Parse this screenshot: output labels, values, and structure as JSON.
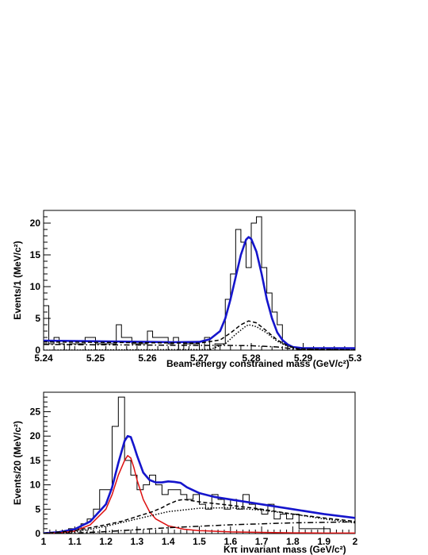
{
  "chart_data": [
    {
      "type": "line",
      "xlabel": "Beam-energy constrained mass (GeV/c²)",
      "ylabel": "Events/1 (MeV/c²)",
      "xlim": [
        5.24,
        5.3
      ],
      "ylim": [
        0,
        22
      ],
      "x_ticks": [
        "5.24",
        "5.25",
        "5.26",
        "5.27",
        "5.28",
        "5.29",
        "5.3"
      ],
      "y_ticks": [
        "0",
        "5",
        "10",
        "15",
        "20"
      ],
      "colors": {
        "data": "#000000",
        "total_fit": "#1515cc",
        "components": "#000000"
      },
      "series": [
        {
          "kind": "histogram",
          "bin_edges_start": 5.24,
          "bin_width": 0.001,
          "values": [
            7,
            1,
            2,
            1,
            0,
            1,
            1,
            1,
            2,
            2,
            1,
            1,
            1,
            1,
            4,
            2,
            2,
            1,
            1,
            1,
            3,
            2,
            2,
            2,
            1,
            2,
            0,
            1,
            1,
            1,
            0,
            2,
            0,
            1,
            1,
            8,
            12,
            19,
            17,
            13,
            20,
            21,
            13,
            9,
            6,
            4,
            1,
            0,
            0,
            0,
            0,
            0,
            0,
            0,
            0,
            0,
            0,
            0,
            0,
            0
          ]
        },
        {
          "kind": "line",
          "style": "solid",
          "x": [
            5.24,
            5.25,
            5.26,
            5.265,
            5.27,
            5.272,
            5.274,
            5.275,
            5.276,
            5.277,
            5.278,
            5.279,
            5.2795,
            5.28,
            5.281,
            5.282,
            5.283,
            5.284,
            5.285,
            5.286,
            5.287,
            5.288,
            5.29,
            5.3
          ],
          "y": [
            1.5,
            1.4,
            1.3,
            1.25,
            1.3,
            1.7,
            3.0,
            5.0,
            8.0,
            11.5,
            15.0,
            17.4,
            17.8,
            17.5,
            15.5,
            12.0,
            8.0,
            5.0,
            2.8,
            1.6,
            0.9,
            0.5,
            0.3,
            0.3
          ]
        },
        {
          "kind": "line",
          "style": "dashed",
          "x": [
            5.24,
            5.27,
            5.274,
            5.276,
            5.278,
            5.2795,
            5.281,
            5.283,
            5.285,
            5.287,
            5.289,
            5.3
          ],
          "y": [
            1.3,
            1.1,
            1.6,
            2.7,
            4.0,
            4.6,
            4.3,
            3.0,
            1.6,
            0.7,
            0.2,
            0.05
          ]
        },
        {
          "kind": "line",
          "style": "dotted",
          "x": [
            5.24,
            5.272,
            5.275,
            5.277,
            5.279,
            5.2795,
            5.281,
            5.283,
            5.285,
            5.287,
            5.289,
            5.3
          ],
          "y": [
            0,
            0.1,
            1.0,
            2.5,
            3.8,
            4.0,
            3.7,
            2.7,
            1.4,
            0.6,
            0.2,
            0.05
          ]
        },
        {
          "kind": "line",
          "style": "dashdot",
          "x": [
            5.24,
            5.25,
            5.26,
            5.27,
            5.275,
            5.28,
            5.285,
            5.288,
            5.29,
            5.3
          ],
          "y": [
            0.9,
            0.85,
            0.8,
            0.75,
            0.75,
            0.7,
            0.5,
            0.2,
            0.05,
            0.0
          ]
        }
      ]
    },
    {
      "type": "line",
      "xlabel": "Kπ invariant mass (GeV/c²)",
      "ylabel": "Events/20 (MeV/c²)",
      "xlim": [
        1.0,
        2.0
      ],
      "ylim": [
        0,
        29
      ],
      "x_ticks": [
        "1",
        "1.1",
        "1.2",
        "1.3",
        "1.4",
        "1.5",
        "1.6",
        "1.7",
        "1.8",
        "1.9",
        "2"
      ],
      "y_ticks": [
        "0",
        "5",
        "10",
        "15",
        "20",
        "25"
      ],
      "colors": {
        "data": "#000000",
        "total_fit": "#1515cc",
        "resonance": "#dd1010",
        "components": "#000000"
      },
      "series": [
        {
          "kind": "histogram",
          "bin_edges_start": 1.0,
          "bin_width": 0.02,
          "values": [
            0,
            0,
            0,
            0,
            1,
            1,
            2,
            3,
            5,
            9,
            9,
            22,
            28,
            15,
            12,
            9,
            10,
            12,
            10,
            8,
            9,
            9,
            8,
            7,
            8,
            6,
            5,
            8,
            7,
            5,
            7,
            5,
            8,
            6,
            5,
            4,
            6,
            3,
            4,
            3,
            4,
            1,
            1,
            1,
            1,
            1,
            0,
            0,
            0,
            0
          ]
        },
        {
          "kind": "line",
          "style": "solid",
          "color_key": "total_fit",
          "x": [
            1.0,
            1.05,
            1.1,
            1.15,
            1.2,
            1.22,
            1.24,
            1.26,
            1.27,
            1.28,
            1.29,
            1.3,
            1.32,
            1.34,
            1.36,
            1.38,
            1.4,
            1.42,
            1.44,
            1.46,
            1.5,
            1.55,
            1.6,
            1.7,
            1.8,
            1.9,
            2.0
          ],
          "y": [
            0.05,
            0.3,
            0.9,
            2.5,
            6.0,
            9.5,
            14.5,
            19.0,
            20.0,
            19.8,
            18.0,
            16.0,
            12.5,
            11.0,
            10.5,
            10.5,
            10.7,
            10.6,
            10.4,
            9.5,
            8.3,
            7.5,
            7.0,
            6.0,
            5.0,
            4.0,
            3.2
          ]
        },
        {
          "kind": "line",
          "style": "solid",
          "color_key": "resonance",
          "x": [
            1.0,
            1.05,
            1.1,
            1.15,
            1.2,
            1.22,
            1.24,
            1.26,
            1.27,
            1.28,
            1.29,
            1.3,
            1.32,
            1.34,
            1.36,
            1.4,
            1.45,
            1.5,
            1.6,
            1.7,
            1.8,
            1.9,
            2.0
          ],
          "y": [
            0.02,
            0.15,
            0.5,
            1.8,
            5.0,
            8.0,
            12.0,
            15.0,
            16.0,
            15.5,
            13.5,
            11.0,
            7.0,
            4.5,
            3.0,
            1.6,
            0.9,
            0.6,
            0.35,
            0.25,
            0.15,
            0.1,
            0.1
          ]
        },
        {
          "kind": "line",
          "style": "dashed",
          "x": [
            1.0,
            1.1,
            1.15,
            1.2,
            1.25,
            1.3,
            1.35,
            1.38,
            1.4,
            1.43,
            1.45,
            1.5,
            1.6,
            1.7,
            1.8,
            1.9,
            2.0
          ],
          "y": [
            0.05,
            0.6,
            1.2,
            1.8,
            2.5,
            3.5,
            4.5,
            5.3,
            6.0,
            6.8,
            7.0,
            6.5,
            5.8,
            5.0,
            4.0,
            3.2,
            2.5
          ]
        },
        {
          "kind": "line",
          "style": "dotted",
          "x": [
            1.0,
            1.1,
            1.2,
            1.3,
            1.4,
            1.5,
            1.6,
            1.7,
            1.8,
            1.9,
            2.0
          ],
          "y": [
            0.0,
            0.3,
            1.5,
            3.0,
            4.5,
            5.2,
            5.3,
            4.8,
            4.0,
            3.0,
            2.2
          ]
        },
        {
          "kind": "line",
          "style": "dashdot",
          "x": [
            1.0,
            1.1,
            1.2,
            1.3,
            1.4,
            1.5,
            1.6,
            1.7,
            1.8,
            1.9,
            2.0
          ],
          "y": [
            0.0,
            0.1,
            0.4,
            0.8,
            1.2,
            1.5,
            1.8,
            2.0,
            2.2,
            2.3,
            2.4
          ]
        }
      ]
    }
  ]
}
